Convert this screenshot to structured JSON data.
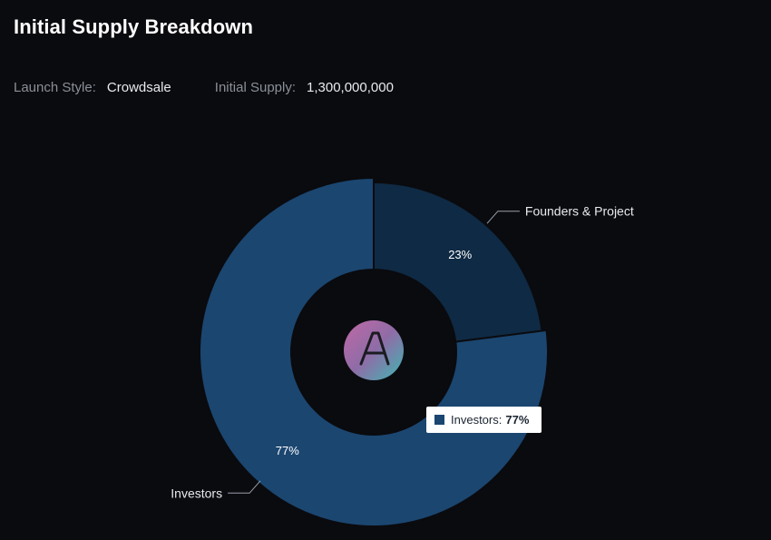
{
  "header": {
    "title": "Initial Supply Breakdown",
    "launch_style_label": "Launch Style:",
    "launch_style_value": "Crowdsale",
    "initial_supply_label": "Initial Supply:",
    "initial_supply_value": "1,300,000,000"
  },
  "center_logo": {
    "icon": "aave-logo-icon",
    "glyph": "A"
  },
  "tooltip": {
    "label": "Investors:",
    "value": "77%"
  },
  "chart_data": {
    "type": "pie",
    "donut": true,
    "categories": [
      "Founders & Project",
      "Investors"
    ],
    "values": [
      23,
      77
    ],
    "data_labels": [
      "23%",
      "77%"
    ],
    "colors": [
      "#0f2a44",
      "#1b4670"
    ],
    "title": "Initial Supply Breakdown"
  }
}
